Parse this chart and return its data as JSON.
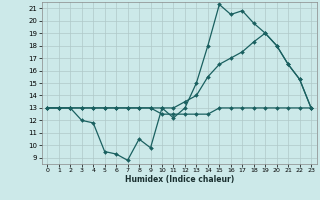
{
  "xlabel": "Humidex (Indice chaleur)",
  "ylabel": "",
  "background_color": "#cce9e9",
  "grid_color": "#b0c8c8",
  "line_color": "#1a6060",
  "xlim": [
    -0.5,
    23.5
  ],
  "ylim": [
    8.5,
    21.5
  ],
  "xticks": [
    0,
    1,
    2,
    3,
    4,
    5,
    6,
    7,
    8,
    9,
    10,
    11,
    12,
    13,
    14,
    15,
    16,
    17,
    18,
    19,
    20,
    21,
    22,
    23
  ],
  "yticks": [
    9,
    10,
    11,
    12,
    13,
    14,
    15,
    16,
    17,
    18,
    19,
    20,
    21
  ],
  "line1_x": [
    0,
    1,
    2,
    3,
    4,
    5,
    6,
    7,
    8,
    9,
    10,
    11,
    12,
    13,
    14,
    15,
    16,
    17,
    18,
    19,
    20,
    21,
    22,
    23
  ],
  "line1_y": [
    13.0,
    13.0,
    13.0,
    12.0,
    11.8,
    9.5,
    9.3,
    8.8,
    10.5,
    9.8,
    13.0,
    12.2,
    13.0,
    15.0,
    18.0,
    21.3,
    20.5,
    20.8,
    19.8,
    19.0,
    18.0,
    16.5,
    15.3,
    13.0
  ],
  "line2_x": [
    0,
    1,
    2,
    3,
    4,
    5,
    6,
    7,
    8,
    9,
    10,
    11,
    12,
    13,
    14,
    15,
    16,
    17,
    18,
    19,
    20,
    21,
    22,
    23
  ],
  "line2_y": [
    13.0,
    13.0,
    13.0,
    13.0,
    13.0,
    13.0,
    13.0,
    13.0,
    13.0,
    13.0,
    13.0,
    13.0,
    13.5,
    14.0,
    15.5,
    16.5,
    17.0,
    17.5,
    18.3,
    19.0,
    18.0,
    16.5,
    15.3,
    13.0
  ],
  "line3_x": [
    0,
    1,
    2,
    3,
    4,
    5,
    6,
    7,
    8,
    9,
    10,
    11,
    12,
    13,
    14,
    15,
    16,
    17,
    18,
    19,
    20,
    21,
    22,
    23
  ],
  "line3_y": [
    13.0,
    13.0,
    13.0,
    13.0,
    13.0,
    13.0,
    13.0,
    13.0,
    13.0,
    13.0,
    12.5,
    12.5,
    12.5,
    12.5,
    12.5,
    13.0,
    13.0,
    13.0,
    13.0,
    13.0,
    13.0,
    13.0,
    13.0,
    13.0
  ],
  "markersize": 2.0,
  "linewidth": 0.9
}
